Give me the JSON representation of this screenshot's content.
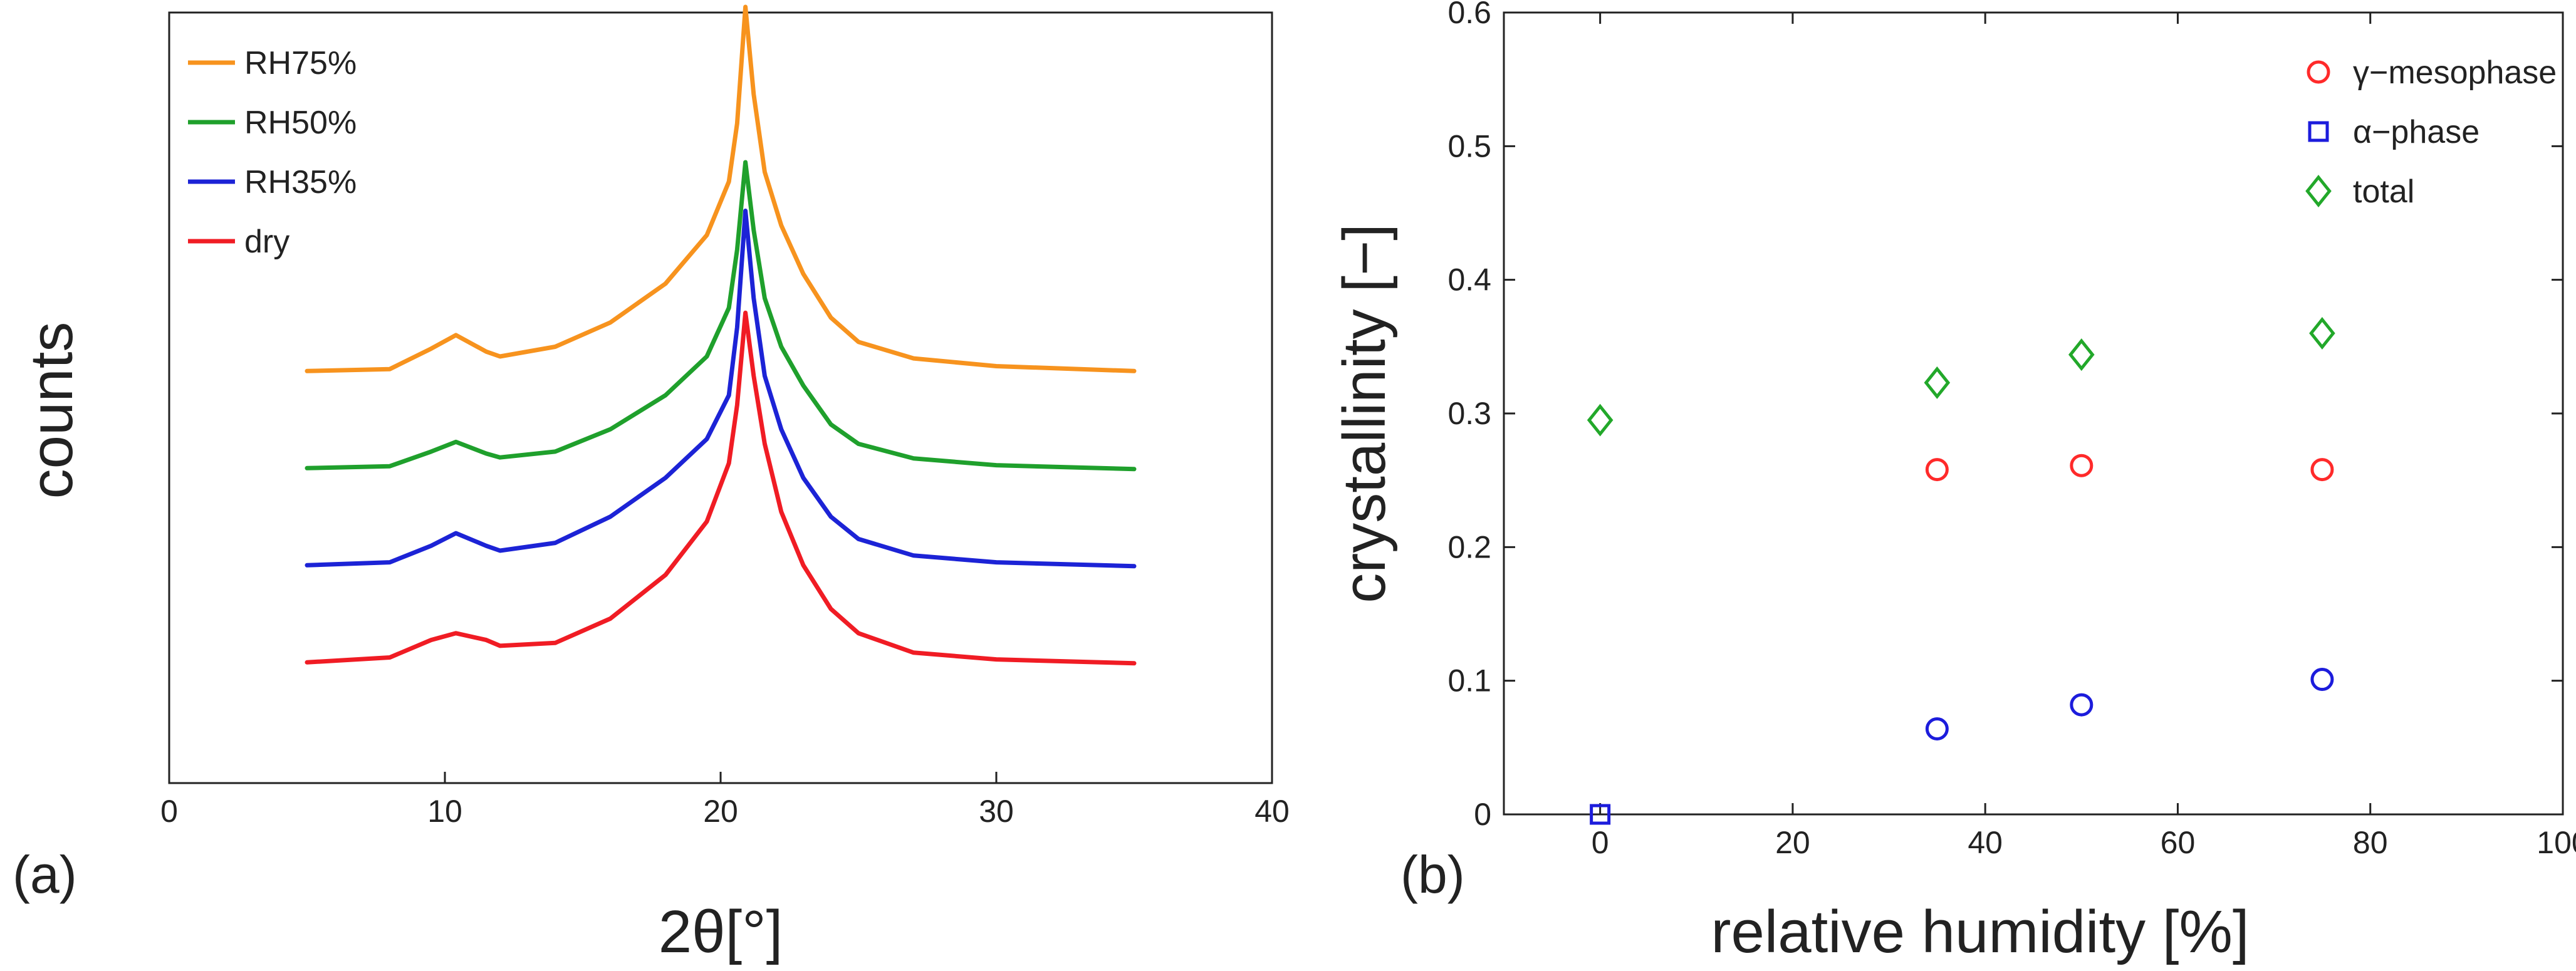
{
  "chart_data": [
    {
      "id": "a",
      "type": "line",
      "panel_label": "(a)",
      "xlabel": "2θ[°]",
      "ylabel": "counts",
      "xlim": [
        0,
        40
      ],
      "xticks": [
        0,
        10,
        20,
        30,
        40
      ],
      "xtick_labels": [
        "0",
        "10",
        "20",
        "30",
        "40"
      ],
      "y_ticks_shown": false,
      "y_units": "arbitrary counts, curves vertically offset",
      "legend_position": "top-left",
      "series": [
        {
          "name": "RH75%",
          "color": "#f7931e",
          "offset": 3.0,
          "x": [
            5,
            8,
            9.5,
            10.4,
            11.5,
            12,
            14,
            16,
            18,
            19.5,
            20.3,
            20.6,
            20.9,
            21.2,
            21.6,
            22.2,
            23,
            24,
            25,
            27,
            30,
            35
          ],
          "y": [
            0.05,
            0.07,
            0.28,
            0.42,
            0.25,
            0.2,
            0.3,
            0.55,
            0.95,
            1.45,
            2.0,
            2.6,
            3.8,
            2.9,
            2.1,
            1.55,
            1.05,
            0.6,
            0.35,
            0.18,
            0.1,
            0.05
          ]
        },
        {
          "name": "RH50%",
          "color": "#1fa02c",
          "offset": 2.0,
          "x": [
            5,
            8,
            9.5,
            10.4,
            11.5,
            12,
            14,
            16,
            18,
            19.5,
            20.3,
            20.6,
            20.9,
            21.2,
            21.6,
            22.2,
            23,
            24,
            25,
            27,
            30,
            35
          ],
          "y": [
            0.05,
            0.07,
            0.22,
            0.32,
            0.2,
            0.16,
            0.22,
            0.45,
            0.8,
            1.2,
            1.7,
            2.3,
            3.2,
            2.5,
            1.8,
            1.3,
            0.9,
            0.5,
            0.3,
            0.15,
            0.08,
            0.04
          ]
        },
        {
          "name": "RH35%",
          "color": "#1c23d6",
          "offset": 1.0,
          "x": [
            5,
            8,
            9.5,
            10.4,
            11.5,
            12,
            14,
            16,
            18,
            19.5,
            20.3,
            20.6,
            20.9,
            21.2,
            21.6,
            22.2,
            23,
            24,
            25,
            27,
            30,
            35
          ],
          "y": [
            0.05,
            0.08,
            0.25,
            0.38,
            0.25,
            0.2,
            0.28,
            0.55,
            0.95,
            1.35,
            1.8,
            2.5,
            3.7,
            2.8,
            2.0,
            1.45,
            0.95,
            0.55,
            0.32,
            0.15,
            0.08,
            0.04
          ]
        },
        {
          "name": "dry",
          "color": "#f01c24",
          "offset": 0.0,
          "x": [
            5,
            8,
            9.5,
            10.4,
            11.5,
            12,
            14,
            16,
            18,
            19.5,
            20.3,
            20.6,
            20.9,
            21.2,
            21.6,
            22.2,
            23,
            24,
            25,
            27,
            30,
            35
          ],
          "y": [
            0.05,
            0.1,
            0.28,
            0.35,
            0.28,
            0.22,
            0.25,
            0.5,
            0.95,
            1.5,
            2.1,
            2.7,
            3.65,
            3.0,
            2.3,
            1.6,
            1.05,
            0.6,
            0.35,
            0.15,
            0.08,
            0.04
          ]
        }
      ]
    },
    {
      "id": "b",
      "type": "scatter",
      "panel_label": "(b)",
      "xlabel": "relative humidity [%]",
      "ylabel": "crystallinity [−]",
      "xlim": [
        -10,
        100
      ],
      "ylim": [
        0,
        0.6
      ],
      "xticks": [
        0,
        20,
        40,
        60,
        80,
        100
      ],
      "xtick_labels": [
        "0",
        "20",
        "40",
        "60",
        "80",
        "100"
      ],
      "yticks": [
        0,
        0.1,
        0.2,
        0.3,
        0.4,
        0.5,
        0.6
      ],
      "ytick_labels": [
        "0",
        "0.1",
        "0.2",
        "0.3",
        "0.4",
        "0.5",
        "0.6"
      ],
      "legend_position": "top-right",
      "series": [
        {
          "name": "γ−mesophase",
          "marker": "circle",
          "color": "#ff2a2a",
          "x": [
            35,
            50,
            75
          ],
          "y": [
            0.258,
            0.261,
            0.258
          ]
        },
        {
          "name": "α−phase",
          "marker": "square",
          "color": "#1c1cdc",
          "x": [
            0
          ],
          "y": [
            0.0
          ]
        },
        {
          "name": "α−phase (circles)",
          "marker": "circle",
          "color": "#1c1cdc",
          "in_legend": false,
          "x": [
            35,
            50,
            75
          ],
          "y": [
            0.064,
            0.082,
            0.101
          ]
        },
        {
          "name": "total",
          "marker": "diamond",
          "color": "#22a82a",
          "x": [
            0,
            35,
            50,
            75
          ],
          "y": [
            0.295,
            0.323,
            0.344,
            0.36
          ]
        }
      ]
    }
  ]
}
